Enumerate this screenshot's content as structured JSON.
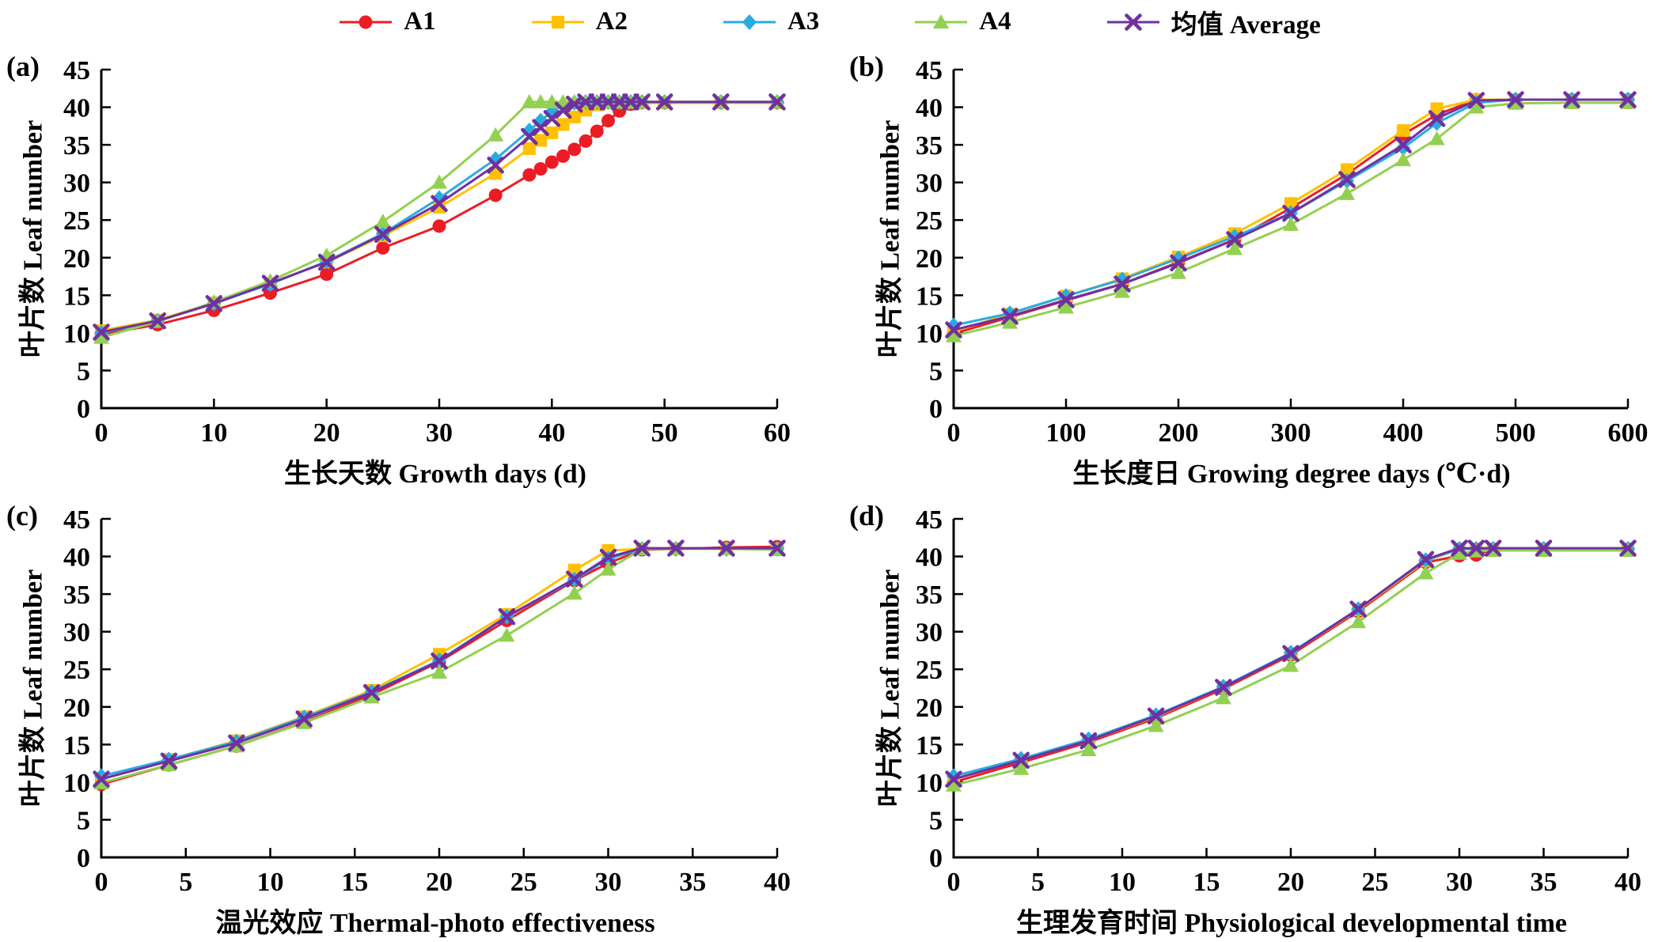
{
  "legend": {
    "items": [
      {
        "label": "A1",
        "color": "#EC1C24",
        "marker": "circle"
      },
      {
        "label": "A2",
        "color": "#FFC000",
        "marker": "square"
      },
      {
        "label": "A3",
        "color": "#29ABE2",
        "marker": "diamond"
      },
      {
        "label": "A4",
        "color": "#92D050",
        "marker": "triangle"
      },
      {
        "label": "均值 Average",
        "color": "#7030A0",
        "marker": "x"
      }
    ]
  },
  "chart_data": [
    {
      "type": "line",
      "panel": "(a)",
      "xlabel": "生长天数 Growth days (d)",
      "ylabel": "叶片数 Leaf number",
      "xlim": [
        0,
        60
      ],
      "ylim": [
        0,
        45
      ],
      "xticks": [
        0,
        10,
        20,
        30,
        40,
        50,
        60
      ],
      "yticks": [
        0,
        5,
        10,
        15,
        20,
        25,
        30,
        35,
        40,
        45
      ],
      "x": [
        0,
        5,
        10,
        15,
        20,
        25,
        30,
        35,
        38,
        39,
        40,
        41,
        42,
        43,
        44,
        45,
        46,
        47,
        48,
        50,
        55,
        60
      ],
      "series": [
        {
          "name": "A1",
          "color": "#EC1C24",
          "marker": "circle",
          "values": [
            9.8,
            11.1,
            13.0,
            15.3,
            17.8,
            21.3,
            24.2,
            28.3,
            31.0,
            31.8,
            32.7,
            33.5,
            34.4,
            35.5,
            36.8,
            38.2,
            39.5,
            40.4,
            40.6,
            40.6,
            40.6,
            40.6
          ]
        },
        {
          "name": "A2",
          "color": "#FFC000",
          "marker": "square",
          "values": [
            10.3,
            11.7,
            14.0,
            16.6,
            19.4,
            22.9,
            26.7,
            31.2,
            34.5,
            35.6,
            36.6,
            37.7,
            38.7,
            39.6,
            40.3,
            40.6,
            40.6,
            40.6,
            40.6,
            40.6,
            40.6,
            40.6
          ]
        },
        {
          "name": "A3",
          "color": "#29ABE2",
          "marker": "diamond",
          "values": [
            10.0,
            11.6,
            13.9,
            16.5,
            19.5,
            23.2,
            27.9,
            33.1,
            36.9,
            38.2,
            39.4,
            40.3,
            40.6,
            40.7,
            40.7,
            40.7,
            40.7,
            40.7,
            40.7,
            40.7,
            40.7,
            40.7
          ]
        },
        {
          "name": "A4",
          "color": "#92D050",
          "marker": "triangle",
          "values": [
            9.4,
            11.5,
            14.1,
            16.9,
            20.3,
            24.8,
            30.0,
            36.3,
            40.7,
            40.7,
            40.7,
            40.7,
            40.7,
            40.7,
            40.7,
            40.7,
            40.7,
            40.7,
            40.7,
            40.7,
            40.7,
            40.7
          ]
        },
        {
          "name": "均值 Average",
          "color": "#7030A0",
          "marker": "x",
          "values": [
            10.1,
            11.6,
            13.9,
            16.6,
            19.4,
            23.1,
            27.2,
            32.3,
            36.1,
            37.3,
            38.5,
            39.6,
            40.4,
            40.7,
            40.7,
            40.7,
            40.7,
            40.7,
            40.7,
            40.7,
            40.7,
            40.7
          ]
        }
      ]
    },
    {
      "type": "line",
      "panel": "(b)",
      "xlabel": "生长度日 Growing degree days (℃·d)",
      "ylabel": "叶片数 Leaf number",
      "xlim": [
        0,
        600
      ],
      "ylim": [
        0,
        45
      ],
      "xticks": [
        0,
        100,
        200,
        300,
        400,
        500,
        600
      ],
      "yticks": [
        0,
        5,
        10,
        15,
        20,
        25,
        30,
        35,
        40,
        45
      ],
      "x": [
        0,
        50,
        100,
        150,
        200,
        250,
        300,
        350,
        400,
        430,
        465,
        500,
        550,
        600
      ],
      "series": [
        {
          "name": "A1",
          "color": "#EC1C24",
          "marker": "circle",
          "values": [
            9.9,
            12.1,
            14.3,
            16.5,
            19.4,
            22.4,
            26.6,
            31.1,
            36.4,
            39.0,
            41.0,
            41.0,
            41.0,
            41.0
          ]
        },
        {
          "name": "A2",
          "color": "#FFC000",
          "marker": "square",
          "values": [
            10.2,
            12.5,
            14.9,
            17.2,
            20.1,
            23.2,
            27.2,
            31.7,
            36.9,
            39.8,
            41.0,
            41.0,
            41.0,
            41.0
          ]
        },
        {
          "name": "A3",
          "color": "#29ABE2",
          "marker": "diamond",
          "values": [
            11.0,
            12.6,
            14.9,
            17.1,
            19.9,
            22.8,
            25.9,
            30.2,
            34.6,
            37.9,
            40.6,
            41.0,
            41.0,
            41.0
          ]
        },
        {
          "name": "A4",
          "color": "#92D050",
          "marker": "triangle",
          "values": [
            9.6,
            11.4,
            13.4,
            15.5,
            18.0,
            21.2,
            24.4,
            28.5,
            33.0,
            35.8,
            40.0,
            40.5,
            40.6,
            40.6
          ]
        },
        {
          "name": "均值 Average",
          "color": "#7030A0",
          "marker": "x",
          "values": [
            10.4,
            12.2,
            14.4,
            16.5,
            19.3,
            22.4,
            25.9,
            30.4,
            35.0,
            38.5,
            40.9,
            41.0,
            41.0,
            41.0
          ]
        }
      ]
    },
    {
      "type": "line",
      "panel": "(c)",
      "xlabel": "温光效应 Thermal-photo effectiveness",
      "ylabel": "叶片数 Leaf number",
      "xlim": [
        0,
        40
      ],
      "ylim": [
        0,
        45
      ],
      "xticks": [
        0,
        5,
        10,
        15,
        20,
        25,
        30,
        35,
        40
      ],
      "yticks": [
        0,
        5,
        10,
        15,
        20,
        25,
        30,
        35,
        40,
        45
      ],
      "x": [
        0,
        4,
        8,
        12,
        16,
        20,
        24,
        28,
        30,
        32,
        34,
        37,
        40
      ],
      "series": [
        {
          "name": "A1",
          "color": "#EC1C24",
          "marker": "circle",
          "values": [
            9.7,
            12.3,
            14.8,
            18.0,
            21.6,
            26.0,
            31.5,
            36.8,
            39.1,
            40.9,
            41.0,
            41.2,
            41.3
          ]
        },
        {
          "name": "A2",
          "color": "#FFC000",
          "marker": "square",
          "values": [
            10.4,
            13.0,
            15.5,
            18.7,
            22.2,
            27.0,
            32.3,
            38.2,
            40.8,
            41.0,
            41.0,
            41.0,
            41.0
          ]
        },
        {
          "name": "A3",
          "color": "#29ABE2",
          "marker": "diamond",
          "values": [
            10.8,
            13.0,
            15.4,
            18.6,
            22.0,
            26.2,
            32.0,
            36.9,
            39.7,
            41.0,
            41.0,
            41.0,
            41.0
          ]
        },
        {
          "name": "A4",
          "color": "#92D050",
          "marker": "triangle",
          "values": [
            9.9,
            12.3,
            14.8,
            17.9,
            21.3,
            24.6,
            29.5,
            35.1,
            38.3,
            41.0,
            41.0,
            41.0,
            40.9
          ]
        },
        {
          "name": "均值 Average",
          "color": "#7030A0",
          "marker": "x",
          "values": [
            10.4,
            12.8,
            15.2,
            18.4,
            21.9,
            26.1,
            32.0,
            37.0,
            39.9,
            41.1,
            41.1,
            41.1,
            41.1
          ]
        }
      ]
    },
    {
      "type": "line",
      "panel": "(d)",
      "xlabel": "生理发育时间 Physiological developmental time",
      "ylabel": "叶片数 Leaf number",
      "xlim": [
        0,
        40
      ],
      "ylim": [
        0,
        45
      ],
      "xticks": [
        0,
        5,
        10,
        15,
        20,
        25,
        30,
        35,
        40
      ],
      "yticks": [
        0,
        5,
        10,
        15,
        20,
        25,
        30,
        35,
        40,
        45
      ],
      "x": [
        0,
        4,
        8,
        12,
        16,
        20,
        24,
        28,
        30,
        31,
        32,
        35,
        40
      ],
      "series": [
        {
          "name": "A1",
          "color": "#EC1C24",
          "marker": "circle",
          "values": [
            10.0,
            12.6,
            15.3,
            18.5,
            22.4,
            26.9,
            32.7,
            39.2,
            40.1,
            40.2,
            41.0,
            41.0,
            41.0
          ]
        },
        {
          "name": "A2",
          "color": "#FFC000",
          "marker": "square",
          "values": [
            10.4,
            12.9,
            15.5,
            18.7,
            22.6,
            27.1,
            32.9,
            39.4,
            41.0,
            41.0,
            41.0,
            41.0,
            41.0
          ]
        },
        {
          "name": "A3",
          "color": "#29ABE2",
          "marker": "diamond",
          "values": [
            10.8,
            13.1,
            15.7,
            18.9,
            22.7,
            27.2,
            33.0,
            39.5,
            41.0,
            41.0,
            41.0,
            41.0,
            41.0
          ]
        },
        {
          "name": "A4",
          "color": "#92D050",
          "marker": "triangle",
          "values": [
            9.6,
            11.8,
            14.3,
            17.5,
            21.2,
            25.5,
            31.3,
            37.8,
            40.4,
            40.7,
            40.8,
            40.8,
            40.8
          ]
        },
        {
          "name": "均值 Average",
          "color": "#7030A0",
          "marker": "x",
          "values": [
            10.4,
            12.9,
            15.5,
            18.8,
            22.6,
            27.1,
            33.0,
            39.6,
            41.1,
            41.1,
            41.1,
            41.1,
            41.1
          ]
        }
      ]
    }
  ]
}
